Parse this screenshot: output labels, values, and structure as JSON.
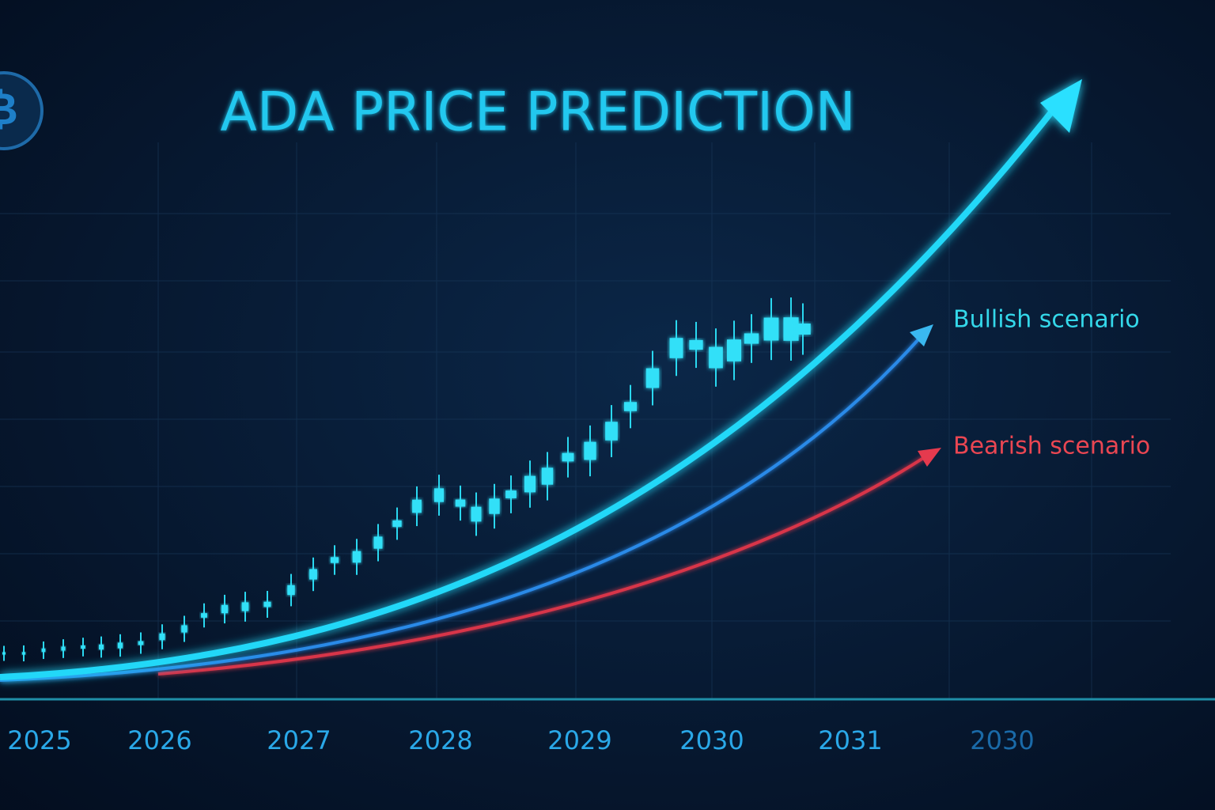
{
  "chart_data": {
    "type": "candlestick-illustration",
    "title": "ADA PRICE PREDICTION",
    "categories": [
      "2025",
      "2026",
      "2027",
      "2028",
      "2029",
      "2030",
      "2031",
      "2030"
    ],
    "annotations": [
      "Bullish scenario",
      "Bearish scenario"
    ]
  }
}
